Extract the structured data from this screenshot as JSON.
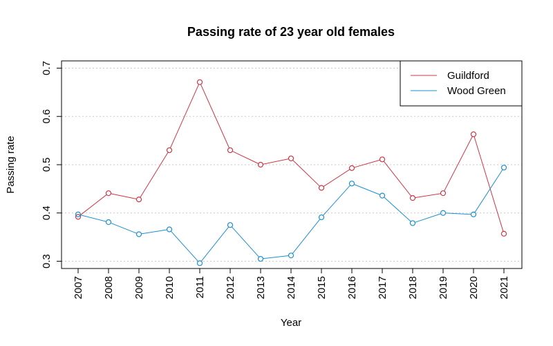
{
  "chart_data": {
    "type": "line",
    "title": "Passing rate of 23 year old females",
    "xlabel": "Year",
    "ylabel": "Passing rate",
    "categories": [
      "2007",
      "2008",
      "2009",
      "2010",
      "2011",
      "2012",
      "2013",
      "2014",
      "2015",
      "2016",
      "2017",
      "2018",
      "2019",
      "2020",
      "2021"
    ],
    "ylim": [
      0.285,
      0.715
    ],
    "yticks": [
      0.3,
      0.4,
      0.5,
      0.6,
      0.7
    ],
    "ytick_labels": [
      "0.3",
      "0.4",
      "0.5",
      "0.6",
      "0.7"
    ],
    "grid": "horizontal dotted",
    "legend_position": "top-right",
    "series": [
      {
        "name": "Guildford",
        "color": "#cd3545",
        "values": [
          0.392,
          0.441,
          0.428,
          0.53,
          0.671,
          0.53,
          0.5,
          0.513,
          0.452,
          0.493,
          0.511,
          0.431,
          0.441,
          0.563,
          0.357
        ]
      },
      {
        "name": "Wood Green",
        "color": "#1a8fd0",
        "values": [
          0.397,
          0.381,
          0.356,
          0.366,
          0.296,
          0.375,
          0.305,
          0.312,
          0.391,
          0.461,
          0.436,
          0.379,
          0.4,
          0.397,
          0.494
        ]
      }
    ]
  }
}
